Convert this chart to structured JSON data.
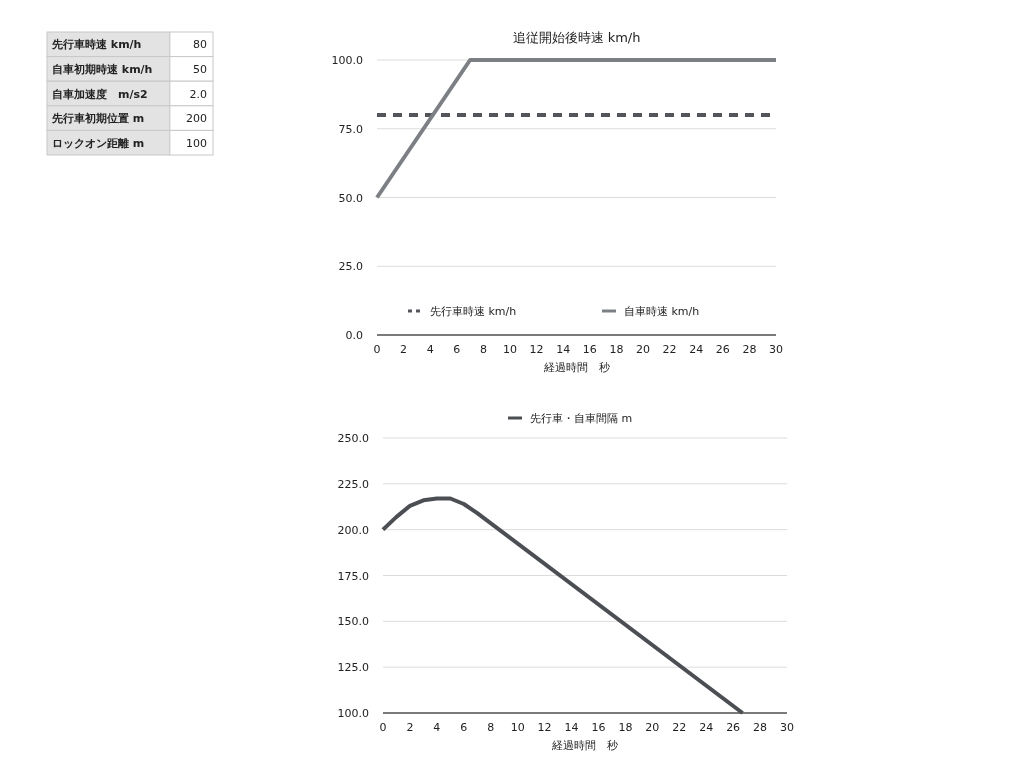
{
  "chart_data": [
    {
      "type": "other",
      "categories": [
        "先行車時速 km/h",
        "自車初期時速 km/h",
        "自車加速度　m/s2",
        "先行車初期位置 m",
        "ロックオン距離 m"
      ],
      "value_labels": [
        "80",
        "50",
        "2.0",
        "200",
        "100"
      ]
    },
    {
      "type": "line",
      "title": "追従開始後時速 km/h",
      "xlabel": "経過時間　秒",
      "xlim": [
        0,
        30
      ],
      "xticks": [
        0,
        2,
        4,
        6,
        8,
        10,
        12,
        14,
        16,
        18,
        20,
        22,
        24,
        26,
        28,
        30
      ],
      "ylim": [
        0,
        100
      ],
      "yticks": [
        {
          "value": 0,
          "label": "0.0"
        },
        {
          "value": 25,
          "label": "25.0"
        },
        {
          "value": 50,
          "label": "50.0"
        },
        {
          "value": 75,
          "label": "75.0"
        },
        {
          "value": 100,
          "label": "100.0"
        }
      ],
      "grid": "y",
      "legend": "bottom",
      "series": [
        {
          "name": "先行車時速 km/h",
          "color": "#52565b",
          "line_style": "dashed",
          "x": [
            0,
            30
          ],
          "values": [
            80,
            80
          ]
        },
        {
          "name": "自車時速 km/h",
          "color": "#7c8085",
          "x": [
            0,
            7,
            30
          ],
          "values": [
            50,
            100,
            100
          ]
        }
      ]
    },
    {
      "type": "line",
      "xlabel": "経過時間　秒",
      "xlim": [
        0,
        30
      ],
      "xticks": [
        0,
        2,
        4,
        6,
        8,
        10,
        12,
        14,
        16,
        18,
        20,
        22,
        24,
        26,
        28,
        30
      ],
      "ylim": [
        100,
        250
      ],
      "yticks": [
        {
          "value": 100,
          "label": "100.0"
        },
        {
          "value": 125,
          "label": "125.0"
        },
        {
          "value": 150,
          "label": "150.0"
        },
        {
          "value": 175,
          "label": "175.0"
        },
        {
          "value": 200,
          "label": "200.0"
        },
        {
          "value": 225,
          "label": "225.0"
        },
        {
          "value": 250,
          "label": "250.0"
        }
      ],
      "grid": "y",
      "legend": "top",
      "series": [
        {
          "name": "先行車・自車間隔 m",
          "color": "#4b4e53",
          "x": [
            0,
            1,
            2,
            3,
            4,
            5,
            6,
            7,
            26.7
          ],
          "values": [
            200,
            207,
            213,
            216,
            217,
            217,
            214,
            209,
            100
          ]
        }
      ]
    }
  ]
}
